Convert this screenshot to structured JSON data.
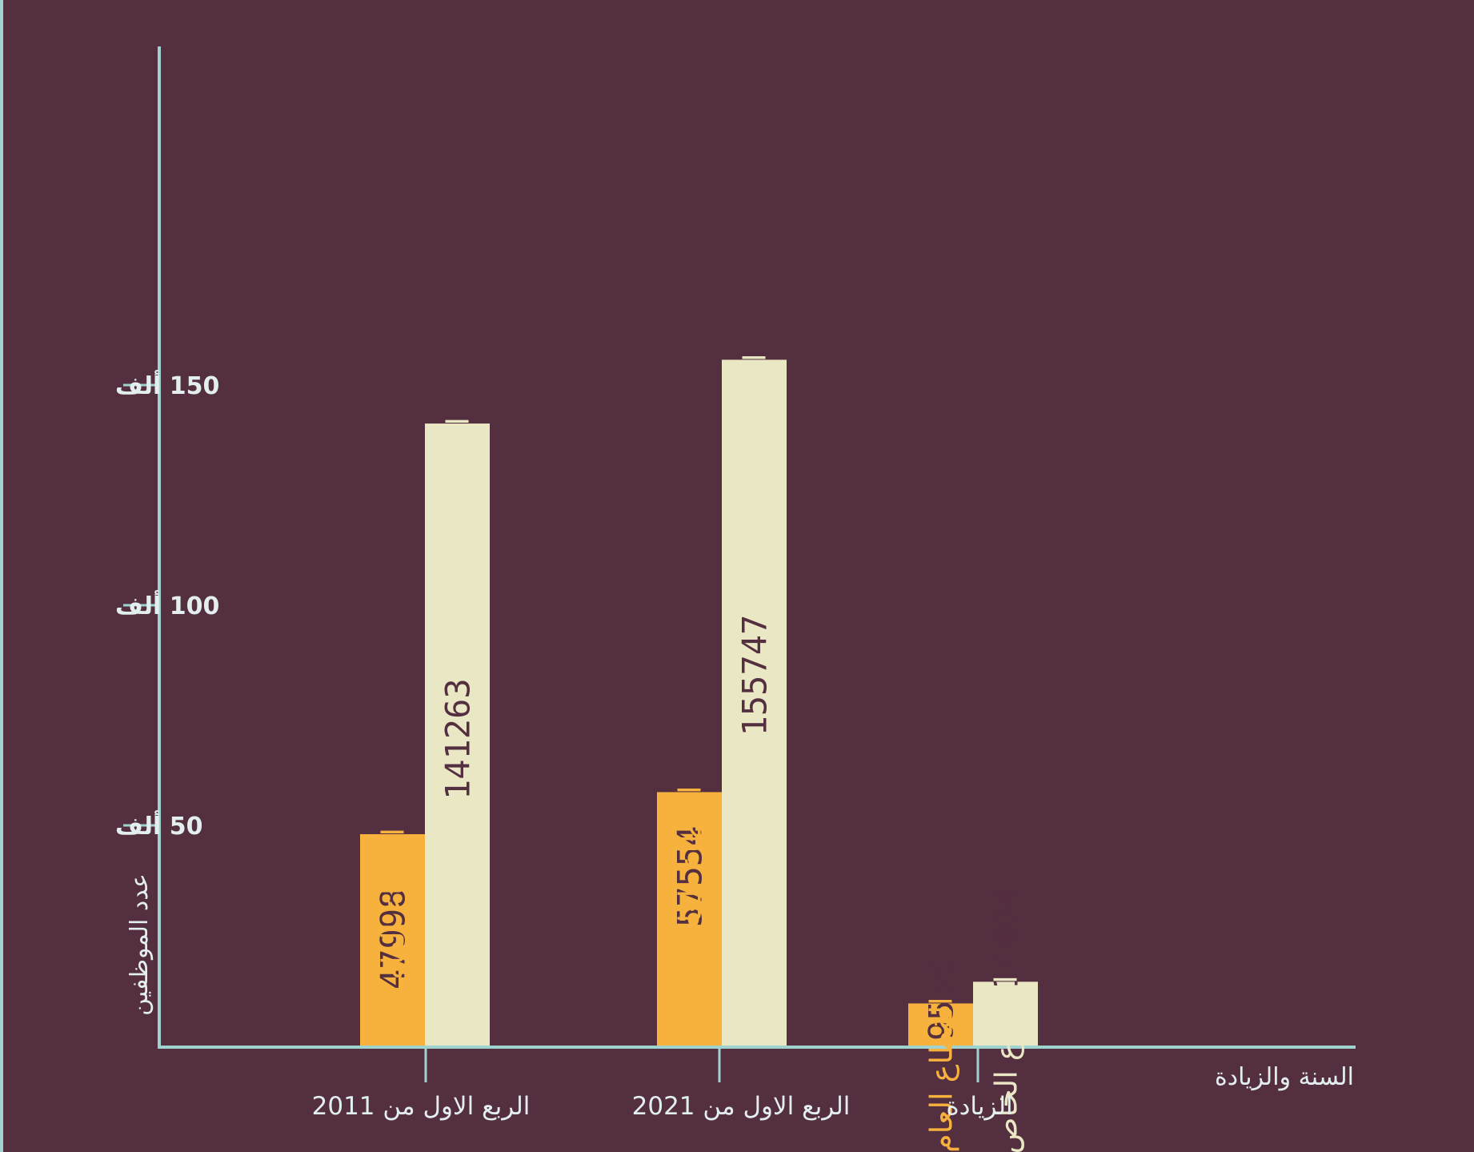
{
  "chart_data": {
    "type": "bar",
    "xlabel": "السنة والزيادة",
    "ylabel": "عدد الموظفين",
    "ylim": [
      0,
      170000
    ],
    "y_ticks": [
      {
        "value": 50000,
        "label": "50 ألف"
      },
      {
        "value": 100000,
        "label": "100 ألف"
      },
      {
        "value": 150000,
        "label": "150 ألف"
      }
    ],
    "categories": [
      "الربع الاول من 2011",
      "الربع الاول من 2021",
      "الزيادة"
    ],
    "series": [
      {
        "name": "القطاع العام",
        "values": [
          47998,
          57554,
          9556
        ],
        "color": "#F7B23E",
        "label_color": "#F7B23E",
        "value_color": "#542F40"
      },
      {
        "name": "القطاع الخاص",
        "values": [
          141263,
          155747,
          14484
        ],
        "color": "#E9E7C4",
        "label_color": "#E9E7C4",
        "value_color": "#542F40"
      }
    ],
    "colors": {
      "background": "#542F40",
      "axis": "#9FD3D0",
      "text": "#E3EEEF"
    },
    "grid": false,
    "legend": "none"
  }
}
